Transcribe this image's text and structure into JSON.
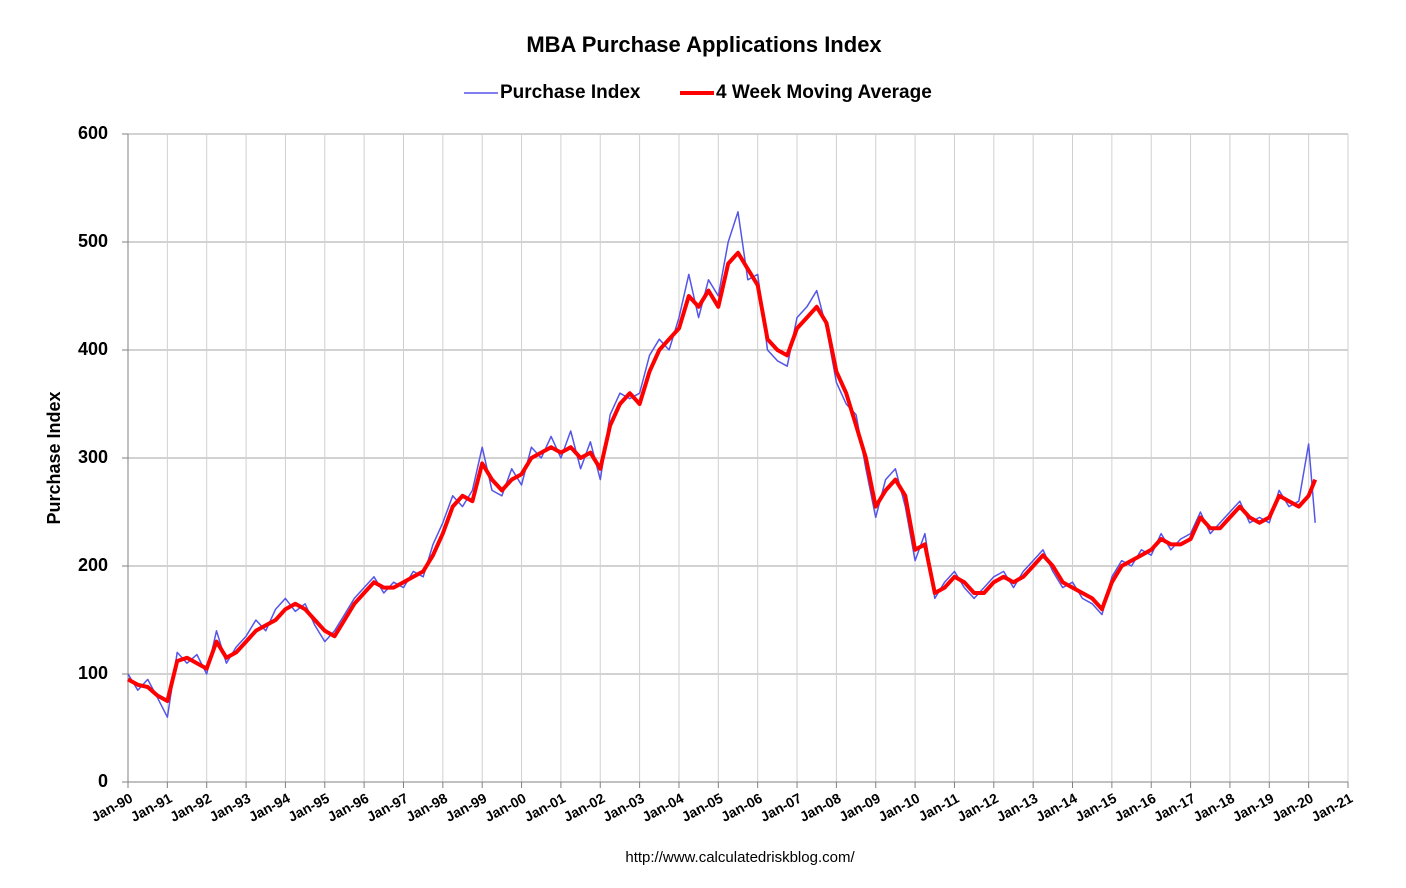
{
  "chart_data": {
    "type": "line",
    "title": "MBA Purchase Applications Index",
    "ylabel": "Purchase Index",
    "source": "http://www.calculatedriskblog.com/",
    "grid": true,
    "legend": "top",
    "x": [
      "1990-01",
      "1990-04",
      "1990-07",
      "1990-10",
      "1991-01",
      "1991-04",
      "1991-07",
      "1991-10",
      "1992-01",
      "1992-04",
      "1992-07",
      "1992-10",
      "1993-01",
      "1993-04",
      "1993-07",
      "1993-10",
      "1994-01",
      "1994-04",
      "1994-07",
      "1994-10",
      "1995-01",
      "1995-04",
      "1995-07",
      "1995-10",
      "1996-01",
      "1996-04",
      "1996-07",
      "1996-10",
      "1997-01",
      "1997-04",
      "1997-07",
      "1997-10",
      "1998-01",
      "1998-04",
      "1998-07",
      "1998-10",
      "1999-01",
      "1999-04",
      "1999-07",
      "1999-10",
      "2000-01",
      "2000-04",
      "2000-07",
      "2000-10",
      "2001-01",
      "2001-04",
      "2001-07",
      "2001-10",
      "2002-01",
      "2002-04",
      "2002-07",
      "2002-10",
      "2003-01",
      "2003-04",
      "2003-07",
      "2003-10",
      "2004-01",
      "2004-04",
      "2004-07",
      "2004-10",
      "2005-01",
      "2005-04",
      "2005-07",
      "2005-10",
      "2006-01",
      "2006-04",
      "2006-07",
      "2006-10",
      "2007-01",
      "2007-04",
      "2007-07",
      "2007-10",
      "2008-01",
      "2008-04",
      "2008-07",
      "2008-10",
      "2009-01",
      "2009-04",
      "2009-07",
      "2009-10",
      "2010-01",
      "2010-04",
      "2010-07",
      "2010-10",
      "2011-01",
      "2011-04",
      "2011-07",
      "2011-10",
      "2012-01",
      "2012-04",
      "2012-07",
      "2012-10",
      "2013-01",
      "2013-04",
      "2013-07",
      "2013-10",
      "2014-01",
      "2014-04",
      "2014-07",
      "2014-10",
      "2015-01",
      "2015-04",
      "2015-07",
      "2015-10",
      "2016-01",
      "2016-04",
      "2016-07",
      "2016-10",
      "2017-01",
      "2017-04",
      "2017-07",
      "2017-10",
      "2018-01",
      "2018-04",
      "2018-07",
      "2018-10",
      "2019-01",
      "2019-04",
      "2019-07",
      "2019-10",
      "2020-01",
      "2020-03"
    ],
    "series": [
      {
        "name": "Purchase Index",
        "color": "#5555e8",
        "width": 1.5,
        "values": [
          100,
          85,
          95,
          78,
          60,
          120,
          110,
          118,
          100,
          140,
          110,
          125,
          135,
          150,
          140,
          160,
          170,
          158,
          165,
          145,
          130,
          140,
          155,
          170,
          180,
          190,
          175,
          185,
          180,
          195,
          190,
          220,
          240,
          265,
          255,
          270,
          310,
          270,
          265,
          290,
          275,
          310,
          300,
          320,
          300,
          325,
          290,
          315,
          280,
          340,
          360,
          355,
          360,
          395,
          410,
          400,
          430,
          470,
          430,
          465,
          450,
          500,
          528,
          465,
          470,
          400,
          390,
          385,
          430,
          440,
          455,
          420,
          370,
          350,
          340,
          290,
          245,
          280,
          290,
          255,
          205,
          230,
          170,
          185,
          195,
          180,
          170,
          180,
          190,
          195,
          180,
          195,
          205,
          215,
          195,
          180,
          185,
          170,
          165,
          155,
          190,
          205,
          200,
          215,
          210,
          230,
          215,
          225,
          230,
          250,
          230,
          240,
          250,
          260,
          240,
          245,
          240,
          270,
          255,
          260,
          313,
          240
        ]
      },
      {
        "name": "4 Week Moving Average",
        "color": "#ff0000",
        "width": 4,
        "values": [
          95,
          90,
          88,
          80,
          75,
          112,
          115,
          110,
          105,
          130,
          115,
          120,
          130,
          140,
          145,
          150,
          160,
          165,
          160,
          150,
          140,
          135,
          150,
          165,
          175,
          185,
          180,
          180,
          185,
          190,
          195,
          210,
          230,
          255,
          265,
          260,
          295,
          280,
          270,
          280,
          285,
          300,
          305,
          310,
          305,
          310,
          300,
          305,
          290,
          330,
          350,
          360,
          350,
          380,
          400,
          410,
          420,
          450,
          440,
          455,
          440,
          480,
          490,
          475,
          460,
          410,
          400,
          395,
          420,
          430,
          440,
          425,
          380,
          360,
          330,
          300,
          255,
          270,
          280,
          265,
          215,
          220,
          175,
          180,
          190,
          185,
          175,
          175,
          185,
          190,
          185,
          190,
          200,
          210,
          200,
          185,
          180,
          175,
          170,
          160,
          185,
          200,
          205,
          210,
          215,
          225,
          220,
          220,
          225,
          245,
          235,
          235,
          245,
          255,
          245,
          240,
          245,
          265,
          260,
          255,
          265,
          280
        ]
      }
    ],
    "xlim": [
      "1990-01",
      "2021-01"
    ],
    "xticks": [
      {
        "value": "1990-01",
        "label": "Jan-90"
      },
      {
        "value": "1991-01",
        "label": "Jan-91"
      },
      {
        "value": "1992-01",
        "label": "Jan-92"
      },
      {
        "value": "1993-01",
        "label": "Jan-93"
      },
      {
        "value": "1994-01",
        "label": "Jan-94"
      },
      {
        "value": "1995-01",
        "label": "Jan-95"
      },
      {
        "value": "1996-01",
        "label": "Jan-96"
      },
      {
        "value": "1997-01",
        "label": "Jan-97"
      },
      {
        "value": "1998-01",
        "label": "Jan-98"
      },
      {
        "value": "1999-01",
        "label": "Jan-99"
      },
      {
        "value": "2000-01",
        "label": "Jan-00"
      },
      {
        "value": "2001-01",
        "label": "Jan-01"
      },
      {
        "value": "2002-01",
        "label": "Jan-02"
      },
      {
        "value": "2003-01",
        "label": "Jan-03"
      },
      {
        "value": "2004-01",
        "label": "Jan-04"
      },
      {
        "value": "2005-01",
        "label": "Jan-05"
      },
      {
        "value": "2006-01",
        "label": "Jan-06"
      },
      {
        "value": "2007-01",
        "label": "Jan-07"
      },
      {
        "value": "2008-01",
        "label": "Jan-08"
      },
      {
        "value": "2009-01",
        "label": "Jan-09"
      },
      {
        "value": "2010-01",
        "label": "Jan-10"
      },
      {
        "value": "2011-01",
        "label": "Jan-11"
      },
      {
        "value": "2012-01",
        "label": "Jan-12"
      },
      {
        "value": "2013-01",
        "label": "Jan-13"
      },
      {
        "value": "2014-01",
        "label": "Jan-14"
      },
      {
        "value": "2015-01",
        "label": "Jan-15"
      },
      {
        "value": "2016-01",
        "label": "Jan-16"
      },
      {
        "value": "2017-01",
        "label": "Jan-17"
      },
      {
        "value": "2018-01",
        "label": "Jan-18"
      },
      {
        "value": "2019-01",
        "label": "Jan-19"
      },
      {
        "value": "2020-01",
        "label": "Jan-20"
      },
      {
        "value": "2021-01",
        "label": "Jan-21"
      }
    ],
    "ylim": [
      0,
      600
    ],
    "yticks": [
      0,
      100,
      200,
      300,
      400,
      500,
      600
    ]
  }
}
